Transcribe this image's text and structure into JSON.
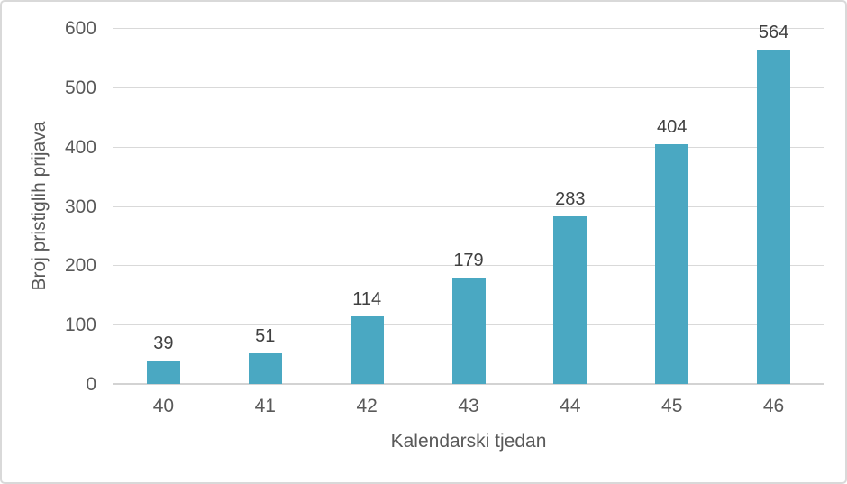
{
  "chart_data": {
    "type": "bar",
    "categories": [
      "40",
      "41",
      "42",
      "43",
      "44",
      "45",
      "46"
    ],
    "values": [
      39,
      51,
      114,
      179,
      283,
      404,
      564
    ],
    "title": "",
    "xlabel": "Kalendarski tjedan",
    "ylabel": "Broj pristiglih prijava",
    "ylim": [
      0,
      600
    ],
    "yticks": [
      0,
      100,
      200,
      300,
      400,
      500,
      600
    ],
    "grid": true,
    "legend_position": "none",
    "data_labels_shown": true
  },
  "colors": {
    "background": "#FFFFFF",
    "frame_border": "#D9D9D9",
    "gridline": "#D9D9D9",
    "axis_line": "#D3D3D3",
    "tick_text": "#595959",
    "data_label_text": "#404040",
    "bar_fill": "#4AA8C2"
  }
}
